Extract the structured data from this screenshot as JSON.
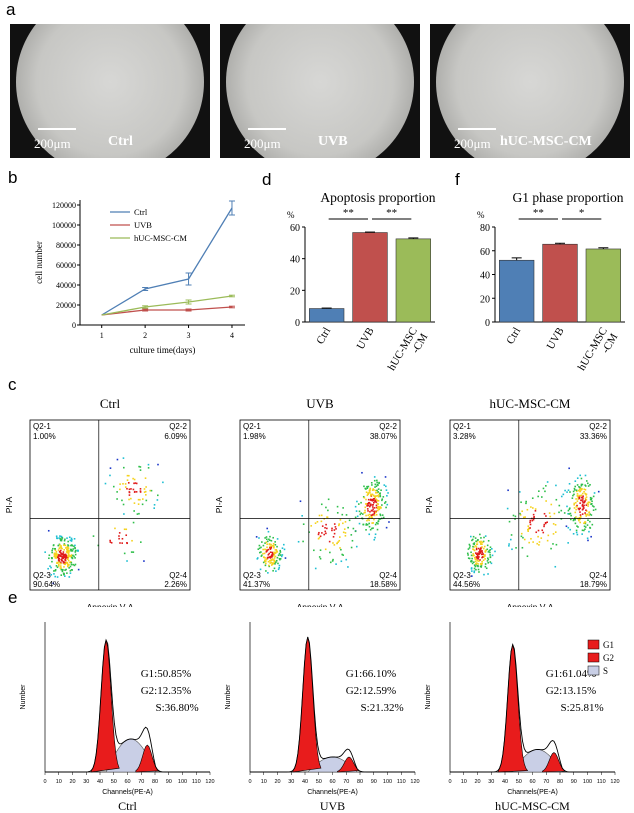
{
  "figure": {
    "panel_labels": {
      "a": "a",
      "b": "b",
      "c": "c",
      "d": "d",
      "e": "e",
      "f": "f"
    },
    "micrographs": [
      {
        "scale": "200μm",
        "name": "Ctrl"
      },
      {
        "scale": "200μm",
        "name": "UVB"
      },
      {
        "scale": "200μm",
        "name": "hUC-MSC-CM"
      }
    ],
    "flow": {
      "xlabel": "Annexin V-A",
      "ylabel": "PI-A",
      "panels": [
        {
          "title": "Ctrl",
          "q21": "Q2-1",
          "q21v": "1.00%",
          "q22": "Q2-2",
          "q22v": "6.09%",
          "q23": "Q2-3",
          "q23v": "90.64%",
          "q24": "Q2-4",
          "q24v": "2.26%"
        },
        {
          "title": "UVB",
          "q21": "Q2-1",
          "q21v": "1.98%",
          "q22": "Q2-2",
          "q22v": "38.07%",
          "q23": "Q2-3",
          "q23v": "41.37%",
          "q24": "Q2-4",
          "q24v": "18.58%"
        },
        {
          "title": "hUC-MSC-CM",
          "q21": "Q2-1",
          "q21v": "3.28%",
          "q22": "Q2-2",
          "q22v": "33.36%",
          "q23": "Q2-3",
          "q23v": "44.56%",
          "q24": "Q2-4",
          "q24v": "18.79%"
        }
      ]
    },
    "cellcycle": {
      "xlabel": "Channels(PE-A)",
      "ylabel": "Number",
      "legend": [
        "G1",
        "G2",
        "S"
      ],
      "panels": [
        {
          "caption": "Ctrl",
          "g1": "G1:50.85%",
          "g2": "G2:12.35%",
          "s": "S:36.80%"
        },
        {
          "caption": "UVB",
          "g1": "G1:66.10%",
          "g2": "G2:12.59%",
          "s": "S:21.32%"
        },
        {
          "caption": "hUC-MSC-CM",
          "g1": "G1:61.04%",
          "g2": "G2:13.15%",
          "s": "S:25.81%"
        }
      ]
    }
  },
  "chart_data": [
    {
      "type": "line",
      "id": "b",
      "title": "",
      "xlabel": "culture time(days)",
      "ylabel": "cell number",
      "x": [
        1,
        2,
        3,
        4
      ],
      "xlim": [
        0.5,
        4.3
      ],
      "ylim": [
        0,
        125000
      ],
      "yticks": [
        "0",
        "20000",
        "40000",
        "60000",
        "80000",
        "100000",
        "120000"
      ],
      "series": [
        {
          "name": "Ctrl",
          "color": "#4f7fb5",
          "values": [
            10000,
            36000,
            46000,
            117000
          ],
          "errors": [
            0,
            1500,
            6000,
            7000
          ]
        },
        {
          "name": "UVB",
          "color": "#c0504d",
          "values": [
            10000,
            15000,
            15000,
            18000
          ],
          "errors": [
            0,
            1000,
            1000,
            800
          ]
        },
        {
          "name": "hUC-MSC-CM",
          "color": "#9bbb59",
          "values": [
            10000,
            18000,
            23000,
            29000
          ],
          "errors": [
            0,
            1200,
            2000,
            800
          ]
        }
      ]
    },
    {
      "type": "bar",
      "id": "d",
      "title": "Apoptosis proportion",
      "unit": "%",
      "ylim": [
        0,
        60
      ],
      "yticks": [
        "0",
        "20",
        "40",
        "60"
      ],
      "categories": [
        "Ctrl",
        "UVB",
        "hUC-MSC\n-CM"
      ],
      "values": [
        8.5,
        56.5,
        52.5
      ],
      "errors": [
        0.3,
        0.3,
        0.6
      ],
      "colors": [
        "#4f7fb5",
        "#c0504d",
        "#9bbb59"
      ],
      "sig": [
        "**",
        "**"
      ]
    },
    {
      "type": "bar",
      "id": "f",
      "title": "G1 phase proportion",
      "unit": "%",
      "ylim": [
        0,
        80
      ],
      "yticks": [
        "0",
        "20",
        "40",
        "60",
        "80"
      ],
      "categories": [
        "Ctrl",
        "UVB",
        "hUC-MSC\n-CM"
      ],
      "values": [
        52,
        65.5,
        61.5
      ],
      "errors": [
        2,
        0.8,
        1
      ],
      "colors": [
        "#4f7fb5",
        "#c0504d",
        "#9bbb59"
      ],
      "sig": [
        "**",
        "*"
      ]
    }
  ]
}
